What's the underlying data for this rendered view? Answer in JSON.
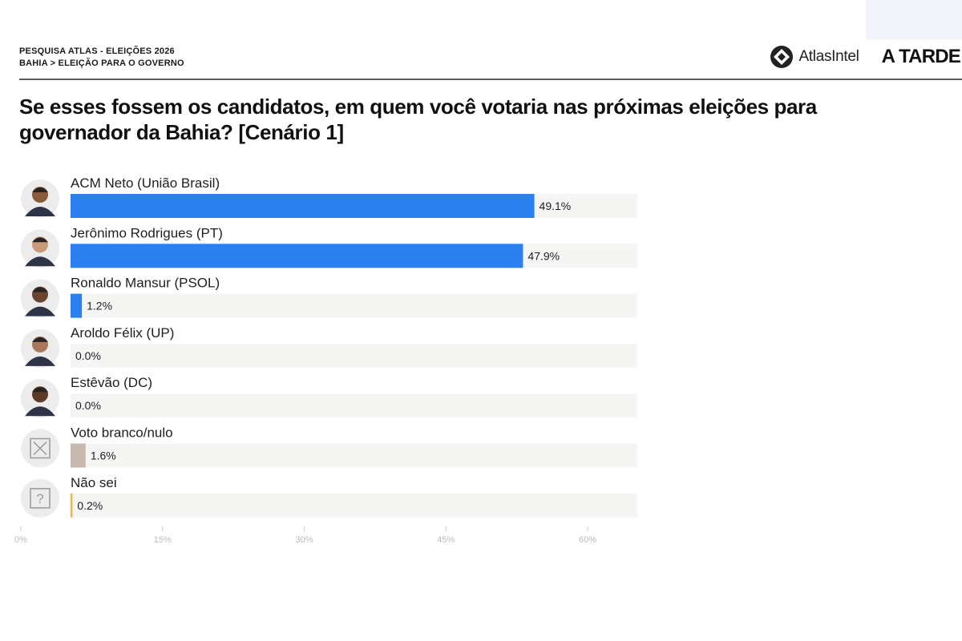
{
  "header": {
    "survey": "PESQUISA ATLAS - ELEIÇÕES 2026",
    "breadcrumb": "BAHIA > ELEIÇÃO PARA O GOVERNO",
    "brand_atlas": "AtlasIntel",
    "brand_atarde": "A TARDE"
  },
  "question": "Se esses fossem os candidatos, em quem você votaria nas próximas eleições para governador da Bahia? [Cenário 1]",
  "colors": {
    "candidate_bar": "#2b7fef",
    "blank_bar": "#c8b9ae",
    "unknown_bar": "#e3b45d",
    "track": "#f5f5f3"
  },
  "chart_data": {
    "type": "bar",
    "orientation": "horizontal",
    "title": "Se esses fossem os candidatos, em quem você votaria nas próximas eleições para governador da Bahia? [Cenário 1]",
    "categories": [
      "ACM Neto (União Brasil)",
      "Jerônimo Rodrigues (PT)",
      "Ronaldo Mansur (PSOL)",
      "Aroldo Félix (UP)",
      "Estêvão (DC)",
      "Voto branco/nulo",
      "Não sei"
    ],
    "values": [
      49.1,
      47.9,
      1.2,
      0.0,
      0.0,
      1.6,
      0.2
    ],
    "value_labels": [
      "49.1%",
      "47.9%",
      "1.2%",
      "0.0%",
      "0.0%",
      "1.6%",
      "0.2%"
    ],
    "bar_colors": [
      "#2b7fef",
      "#2b7fef",
      "#2b7fef",
      "#2b7fef",
      "#2b7fef",
      "#c8b9ae",
      "#e3b45d"
    ],
    "icons": [
      "avatar-photo",
      "avatar-photo",
      "avatar-photo",
      "avatar-photo",
      "avatar-photo",
      "x-box-icon",
      "question-box-icon"
    ],
    "xlim": [
      0,
      60
    ],
    "xticks": [
      0,
      15,
      30,
      45,
      60
    ],
    "xtick_labels": [
      "0%",
      "15%",
      "30%",
      "45%",
      "60%"
    ],
    "grid": false,
    "legend": "none"
  }
}
